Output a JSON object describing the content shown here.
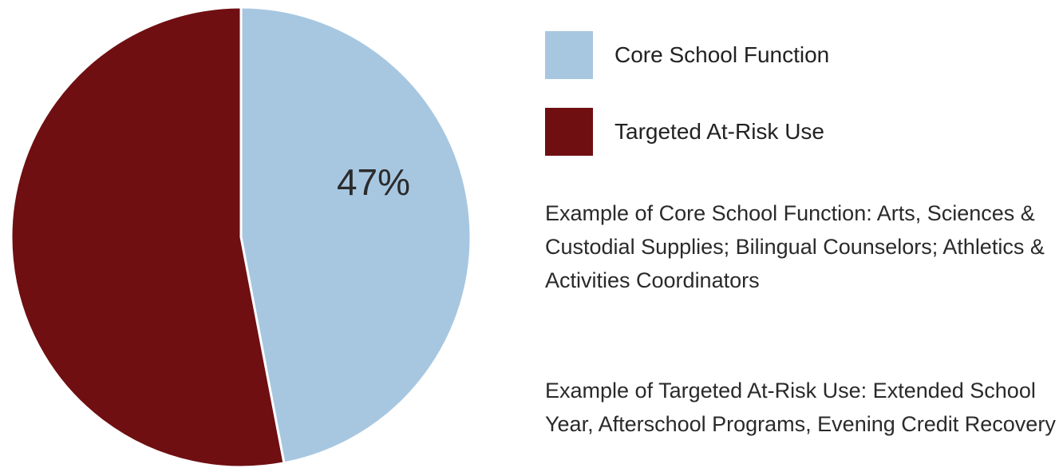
{
  "chart_data": {
    "type": "pie",
    "slices": [
      {
        "name": "Core School Function",
        "value": 47,
        "color": "#a7c7e1",
        "label": "47%"
      },
      {
        "name": "Targeted At-Risk Use",
        "value": 53,
        "color": "#6f0f12",
        "label": ""
      }
    ],
    "legend_position": "right"
  },
  "legend": {
    "items": [
      {
        "label": "Core School Function",
        "color": "#a7c7e1"
      },
      {
        "label": "Targeted At-Risk Use",
        "color": "#6f0f12"
      }
    ]
  },
  "notes": {
    "core_example": "Example of Core School Function: Arts, Sciences & Custodial Supplies; Bilingual Counselors; Athletics & Activities Coordinators",
    "at_risk_example": "Example of Targeted At-Risk Use:  Extended School Year, Afterschool Programs, Evening Credit Recovery"
  }
}
